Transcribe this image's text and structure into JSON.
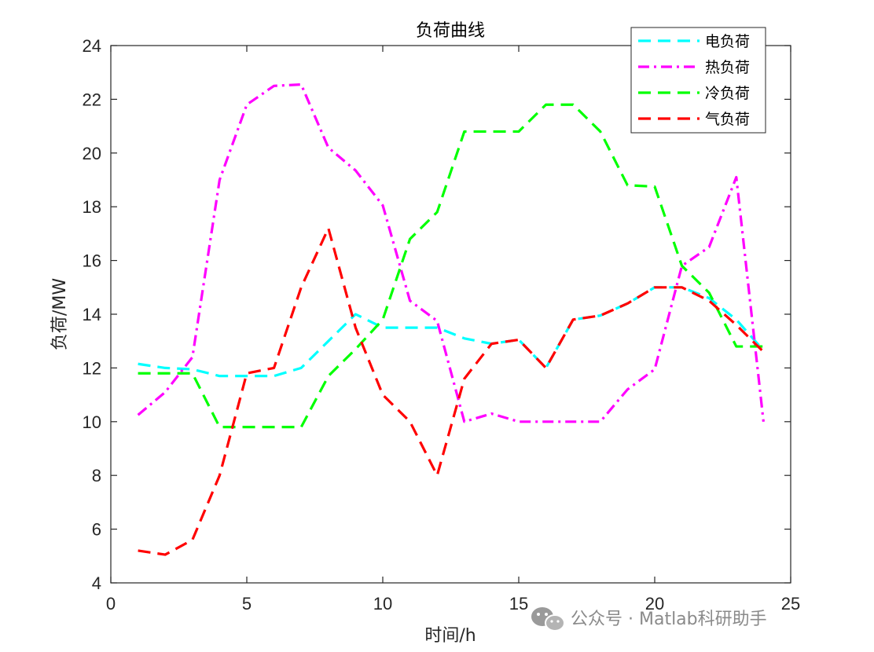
{
  "chart_data": {
    "type": "line",
    "title": "负荷曲线",
    "xlabel": "时间/h",
    "ylabel": "负荷/MW",
    "xlim": [
      0,
      25
    ],
    "ylim": [
      4,
      24
    ],
    "xticks": [
      "0",
      "5",
      "10",
      "15",
      "20",
      "25"
    ],
    "yticks": [
      "4",
      "6",
      "8",
      "10",
      "12",
      "14",
      "16",
      "18",
      "20",
      "22",
      "24"
    ],
    "x": [
      1,
      2,
      3,
      4,
      5,
      6,
      7,
      8,
      9,
      10,
      11,
      12,
      13,
      14,
      15,
      16,
      17,
      18,
      19,
      20,
      21,
      22,
      23,
      24
    ],
    "legend_position": "top-right",
    "grid": false,
    "series": [
      {
        "name": "电负荷",
        "color": "#00ffff",
        "dash": "dashed",
        "values": [
          12.15,
          12.0,
          11.95,
          11.7,
          11.7,
          11.7,
          12.0,
          13.0,
          14.0,
          13.5,
          13.5,
          13.5,
          13.1,
          12.9,
          13.05,
          12.0,
          13.8,
          13.95,
          14.4,
          15.0,
          15.0,
          14.6,
          13.8,
          12.65
        ]
      },
      {
        "name": "热负荷",
        "color": "#ff00ff",
        "dash": "dashdot",
        "values": [
          10.25,
          11.1,
          12.4,
          19.0,
          21.8,
          22.5,
          22.55,
          20.2,
          19.35,
          18.05,
          14.5,
          13.75,
          10.0,
          10.3,
          10.0,
          10.0,
          10.0,
          10.0,
          11.2,
          11.95,
          15.8,
          16.5,
          19.1,
          10.0
        ]
      },
      {
        "name": "冷负荷",
        "color": "#00ff00",
        "dash": "dashed",
        "values": [
          11.8,
          11.8,
          11.8,
          9.8,
          9.8,
          9.8,
          9.8,
          11.7,
          12.7,
          13.8,
          16.8,
          17.8,
          20.8,
          20.8,
          20.8,
          21.8,
          21.8,
          20.8,
          18.8,
          18.75,
          15.8,
          14.8,
          12.8,
          12.8
        ]
      },
      {
        "name": "气负荷",
        "color": "#ff0000",
        "dash": "dashed",
        "values": [
          5.2,
          5.05,
          5.6,
          8.0,
          11.8,
          12.0,
          15.0,
          17.2,
          13.5,
          11.0,
          10.0,
          8.0,
          11.6,
          12.9,
          13.05,
          12.0,
          13.8,
          13.95,
          14.4,
          15.0,
          15.0,
          14.5,
          13.6,
          12.6
        ]
      }
    ]
  },
  "watermark": {
    "text": "公众号 · Matlab科研助手",
    "icon": "wechat-icon"
  }
}
